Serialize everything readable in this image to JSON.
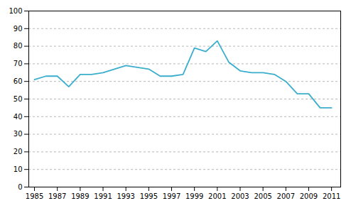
{
  "chart_data": {
    "type": "line",
    "x": [
      1985,
      1986,
      1987,
      1988,
      1989,
      1990,
      1991,
      1992,
      1993,
      1994,
      1995,
      1996,
      1997,
      1998,
      1999,
      2000,
      2001,
      2002,
      2003,
      2004,
      2005,
      2006,
      2007,
      2008,
      2009,
      2010,
      2011
    ],
    "values": [
      61,
      63,
      63,
      57,
      64,
      64,
      65,
      67,
      69,
      68,
      67,
      63,
      63,
      64,
      79,
      77,
      83,
      71,
      66,
      65,
      65,
      64,
      60,
      53,
      53,
      45,
      45
    ],
    "color": "#3aaecc",
    "xlim": [
      1984.5,
      2011.8
    ],
    "xticks": [
      1985,
      1987,
      1989,
      1991,
      1993,
      1995,
      1997,
      1999,
      2001,
      2003,
      2005,
      2007,
      2009,
      2011
    ],
    "ylim": [
      0,
      100
    ],
    "yticks": [
      0,
      10,
      20,
      30,
      40,
      50,
      60,
      70,
      80,
      90,
      100
    ],
    "grid": "y"
  }
}
